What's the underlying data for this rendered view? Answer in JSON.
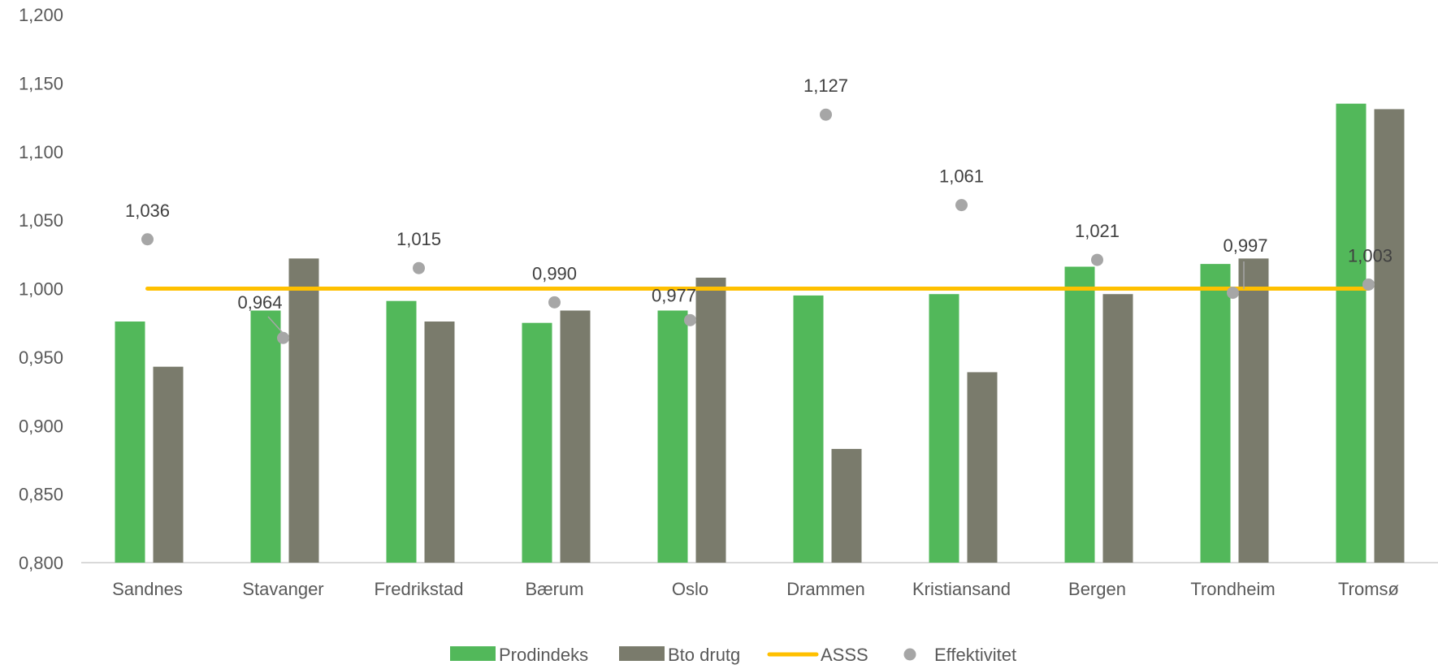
{
  "chart_data": {
    "type": "bar",
    "title": "",
    "xlabel": "",
    "ylabel": "",
    "categories": [
      "Sandnes",
      "Stavanger",
      "Fredrikstad",
      "Bærum",
      "Oslo",
      "Drammen",
      "Kristiansand",
      "Bergen",
      "Trondheim",
      "Tromsø"
    ],
    "ylim": [
      0.8,
      1.2
    ],
    "yticks": [
      "0,800",
      "0,850",
      "0,900",
      "0,950",
      "1,000",
      "1,050",
      "1,100",
      "1,150",
      "1,200"
    ],
    "grid": false,
    "legend_position": "bottom",
    "series": [
      {
        "name": "Prodindeks",
        "type": "bar",
        "color": "#52b85a",
        "values": [
          0.976,
          0.984,
          0.991,
          0.975,
          0.984,
          0.995,
          0.996,
          1.016,
          1.018,
          1.135
        ]
      },
      {
        "name": "Bto drutg",
        "type": "bar",
        "color": "#7a7b6c",
        "values": [
          0.943,
          1.022,
          0.976,
          0.984,
          1.008,
          0.883,
          0.939,
          0.996,
          1.022,
          1.131
        ]
      },
      {
        "name": "ASSS",
        "type": "line",
        "color": "#ffc000",
        "values": [
          1.0,
          1.0,
          1.0,
          1.0,
          1.0,
          1.0,
          1.0,
          1.0,
          1.0,
          1.0
        ]
      },
      {
        "name": "Effektivitet",
        "type": "scatter",
        "color": "#a6a6a6",
        "values": [
          1.036,
          0.964,
          1.015,
          0.99,
          0.977,
          1.127,
          1.061,
          1.021,
          0.997,
          1.003
        ],
        "labels": [
          "1,036",
          "0,964",
          "1,015",
          "0,990",
          "0,977",
          "1,127",
          "1,061",
          "1,021",
          "0,997",
          "1,003"
        ]
      }
    ]
  }
}
